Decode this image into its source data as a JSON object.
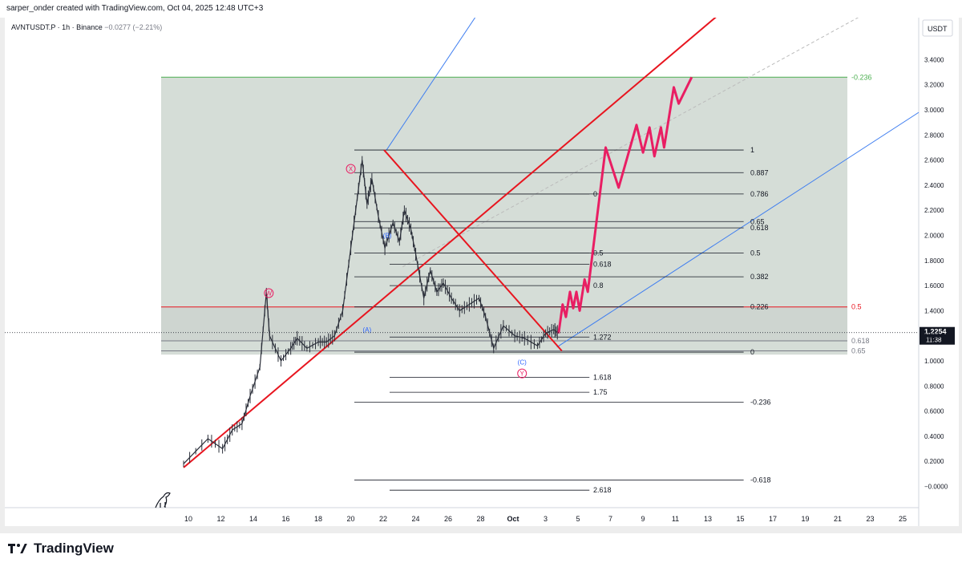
{
  "header": {
    "caption": "sarper_onder created with TradingView.com, Oct 04, 2025 12:48 UTC+3"
  },
  "legend": {
    "symbol": "AVNTUSDT.P",
    "interval": "1h",
    "exchange": "Binance",
    "change": "−0.0277 (−2.21%)"
  },
  "footer": {
    "brand": "TradingView"
  },
  "colors": {
    "fib_zone": "#d3dbd5",
    "red_line": "#e8151f",
    "pink": "#e91e63",
    "blue_channel": "#3f7ef0",
    "green_level": "#4caf50",
    "candle": "#2a2e39"
  },
  "chart_data": {
    "type": "line",
    "title": "",
    "currency": "USDT",
    "ylim": [
      -0.1,
      3.6
    ],
    "y_ticks": [
      "3.4000",
      "3.2000",
      "3.0000",
      "2.8000",
      "2.6000",
      "2.4000",
      "2.2000",
      "2.0000",
      "1.8000",
      "1.6000",
      "1.4000",
      "1.2000",
      "1.0000",
      "0.8000",
      "0.6000",
      "0.4000",
      "0.2000",
      "−0.0000"
    ],
    "x_ticks": [
      "10",
      "12",
      "14",
      "16",
      "18",
      "20",
      "22",
      "24",
      "26",
      "28",
      "Oct",
      "3",
      "5",
      "7",
      "9",
      "11",
      "13",
      "15",
      "17",
      "19",
      "21",
      "23",
      "25"
    ],
    "last_price": {
      "value": "1.2254",
      "countdown": "11:38",
      "y": 1.2254
    },
    "price_path": [
      [
        0,
        0.18
      ],
      [
        1.5,
        0.38
      ],
      [
        2.4,
        0.3
      ],
      [
        3,
        0.45
      ],
      [
        3.6,
        0.5
      ],
      [
        4.1,
        0.72
      ],
      [
        4.7,
        0.95
      ],
      [
        5.1,
        1.55
      ],
      [
        5.3,
        1.2
      ],
      [
        6,
        1.0
      ],
      [
        6.6,
        1.1
      ],
      [
        7,
        1.18
      ],
      [
        7.6,
        1.1
      ],
      [
        8.3,
        1.15
      ],
      [
        8.8,
        1.15
      ],
      [
        9.3,
        1.2
      ],
      [
        9.8,
        1.4
      ],
      [
        10.3,
        1.9
      ],
      [
        10.7,
        2.3
      ],
      [
        11.0,
        2.6
      ],
      [
        11.3,
        2.25
      ],
      [
        11.6,
        2.45
      ],
      [
        12.0,
        2.15
      ],
      [
        12.4,
        1.9
      ],
      [
        12.9,
        2.1
      ],
      [
        13.3,
        1.95
      ],
      [
        13.6,
        2.2
      ],
      [
        14.0,
        2.05
      ],
      [
        14.3,
        1.85
      ],
      [
        14.8,
        1.5
      ],
      [
        15.2,
        1.72
      ],
      [
        15.6,
        1.55
      ],
      [
        16,
        1.62
      ],
      [
        16.5,
        1.5
      ],
      [
        17,
        1.4
      ],
      [
        17.6,
        1.45
      ],
      [
        18.2,
        1.5
      ],
      [
        18.6,
        1.35
      ],
      [
        19.1,
        1.1
      ],
      [
        19.7,
        1.28
      ],
      [
        20.4,
        1.2
      ],
      [
        21.0,
        1.18
      ],
      [
        21.8,
        1.12
      ],
      [
        22.3,
        1.22
      ],
      [
        22.8,
        1.25
      ],
      [
        23.1,
        1.22
      ]
    ],
    "projection": [
      [
        23.1,
        1.22
      ],
      [
        23.35,
        1.45
      ],
      [
        23.55,
        1.35
      ],
      [
        23.8,
        1.55
      ],
      [
        24.0,
        1.42
      ],
      [
        24.2,
        1.55
      ],
      [
        24.4,
        1.4
      ],
      [
        24.7,
        1.65
      ],
      [
        24.9,
        1.55
      ],
      [
        26.0,
        2.7
      ],
      [
        26.8,
        2.38
      ],
      [
        27.9,
        2.88
      ],
      [
        28.3,
        2.66
      ],
      [
        28.7,
        2.86
      ],
      [
        29.0,
        2.63
      ],
      [
        29.4,
        2.86
      ],
      [
        29.6,
        2.7
      ],
      [
        30.2,
        3.18
      ],
      [
        30.5,
        3.05
      ],
      [
        31.3,
        3.26
      ]
    ],
    "fib_retracement": {
      "zone_top": 3.26,
      "zone_bottom": 1.05,
      "levels": [
        {
          "label": "-0.236",
          "y": 3.26,
          "color": "#4caf50"
        },
        {
          "label": "0.5",
          "y": 1.43,
          "color": "#e8151f"
        },
        {
          "label": "0.618",
          "y": 1.16,
          "color": "#787b86"
        },
        {
          "label": "0.65",
          "y": 1.08,
          "color": "#787b86"
        }
      ]
    },
    "fib_levels_mid": [
      {
        "label": "1",
        "y": 2.68
      },
      {
        "label": "0.887",
        "y": 2.5
      },
      {
        "label": "0.786",
        "y": 2.33
      },
      {
        "label": "0.65",
        "y": 2.11
      },
      {
        "label": "0.618",
        "y": 2.06
      },
      {
        "label": "0.5",
        "y": 1.86
      },
      {
        "label": "0.382",
        "y": 1.67
      },
      {
        "label": "0.226",
        "y": 1.43
      },
      {
        "label": "0",
        "y": 1.07
      },
      {
        "label": "-0.236",
        "y": 0.67
      },
      {
        "label": "-0.618",
        "y": 0.05
      }
    ],
    "fib_levels_inner": [
      {
        "label": "0",
        "y": 2.33
      },
      {
        "label": "0.5",
        "y": 1.86
      },
      {
        "label": "0.618",
        "y": 1.77
      },
      {
        "label": "0.8",
        "y": 1.6
      },
      {
        "label": "1.272",
        "y": 1.19
      },
      {
        "label": "1.618",
        "y": 0.87
      },
      {
        "label": "1.75",
        "y": 0.75
      },
      {
        "label": "2.618",
        "y": -0.03
      }
    ],
    "wave_labels": [
      {
        "text": "X",
        "x": 10.3,
        "y": 2.53,
        "color": "#e91e63",
        "circle": true
      },
      {
        "text": "W",
        "x": 5.25,
        "y": 1.54,
        "color": "#e91e63",
        "circle": true
      },
      {
        "text": "Y",
        "x": 20.85,
        "y": 0.9,
        "color": "#e91e63",
        "circle": true
      },
      {
        "text": "(B)",
        "x": 12.55,
        "y": 2.0,
        "color": "#2962ff",
        "circle": false
      },
      {
        "text": "(A)",
        "x": 11.3,
        "y": 1.25,
        "color": "#2962ff",
        "circle": false
      },
      {
        "text": "(C)",
        "x": 20.85,
        "y": 0.99,
        "color": "#2962ff",
        "circle": false
      }
    ]
  }
}
